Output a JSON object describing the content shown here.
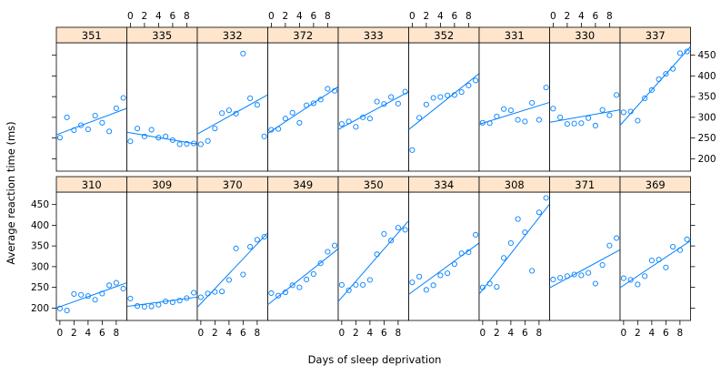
{
  "chart_data": {
    "type": "scatter",
    "layout": "lattice grid, 9 columns x 2 rows",
    "xlabel": "Days of sleep deprivation",
    "ylabel": "Average reaction time (ms)",
    "xlim": [
      -0.5,
      9.5
    ],
    "ylim": [
      170,
      480
    ],
    "x_ticks": [
      0,
      2,
      4,
      6,
      8
    ],
    "y_ticks": [
      200,
      250,
      300,
      350,
      400,
      450
    ],
    "x_axis_placement": "alternating top and bottom",
    "y_axis_placement": "top row right, bottom row left",
    "point_style": "open circles",
    "fit_line": "least-squares regression per panel",
    "series_color": "#0080ff",
    "strip_color": "#ffe5cc",
    "x": [
      0,
      1,
      2,
      3,
      4,
      5,
      6,
      7,
      8,
      9
    ],
    "panels": [
      {
        "subject": "351",
        "row": "top",
        "y": [
          251,
          300,
          269,
          281,
          271,
          304,
          287,
          266,
          322,
          347
        ]
      },
      {
        "subject": "335",
        "row": "top",
        "y": [
          242,
          273,
          254,
          270,
          251,
          254,
          245,
          235,
          236,
          237
        ]
      },
      {
        "subject": "332",
        "row": "top",
        "y": [
          235,
          243,
          273,
          310,
          317,
          309,
          454,
          346,
          330,
          254
        ]
      },
      {
        "subject": "372",
        "row": "top",
        "y": [
          270,
          272,
          297,
          311,
          287,
          329,
          334,
          343,
          369,
          364
        ]
      },
      {
        "subject": "333",
        "row": "top",
        "y": [
          284,
          290,
          277,
          300,
          297,
          338,
          332,
          349,
          333,
          362
        ]
      },
      {
        "subject": "352",
        "row": "top",
        "y": [
          221,
          299,
          331,
          347,
          349,
          353,
          354,
          361,
          377,
          389
        ]
      },
      {
        "subject": "331",
        "row": "top",
        "y": [
          287,
          286,
          302,
          320,
          317,
          294,
          290,
          335,
          294,
          372
        ]
      },
      {
        "subject": "330",
        "row": "top",
        "y": [
          321,
          300,
          284,
          285,
          286,
          298,
          280,
          318,
          305,
          354
        ]
      },
      {
        "subject": "337",
        "row": "top",
        "y": [
          312,
          314,
          292,
          346,
          366,
          392,
          405,
          417,
          455,
          459
        ]
      },
      {
        "subject": "310",
        "row": "bottom",
        "y": [
          199,
          194,
          234,
          232,
          229,
          220,
          235,
          255,
          261,
          247
        ]
      },
      {
        "subject": "309",
        "row": "bottom",
        "y": [
          223,
          205,
          203,
          204,
          208,
          216,
          214,
          218,
          224,
          237
        ]
      },
      {
        "subject": "370",
        "row": "bottom",
        "y": [
          226,
          235,
          239,
          240,
          268,
          344,
          281,
          348,
          365,
          372
        ]
      },
      {
        "subject": "349",
        "row": "bottom",
        "y": [
          236,
          230,
          238,
          255,
          250,
          269,
          282,
          308,
          336,
          351
        ]
      },
      {
        "subject": "350",
        "row": "bottom",
        "y": [
          256,
          243,
          256,
          256,
          268,
          330,
          379,
          363,
          394,
          389
        ]
      },
      {
        "subject": "334",
        "row": "bottom",
        "y": [
          262,
          276,
          244,
          255,
          279,
          284,
          306,
          332,
          335,
          377
        ]
      },
      {
        "subject": "308",
        "row": "bottom",
        "y": [
          250,
          259,
          251,
          321,
          357,
          415,
          383,
          290,
          431,
          466
        ]
      },
      {
        "subject": "371",
        "row": "bottom",
        "y": [
          269,
          273,
          277,
          281,
          279,
          285,
          259,
          304,
          351,
          369
        ]
      },
      {
        "subject": "369",
        "row": "bottom",
        "y": [
          272,
          268,
          257,
          277,
          315,
          317,
          298,
          348,
          340,
          366
        ]
      }
    ]
  }
}
